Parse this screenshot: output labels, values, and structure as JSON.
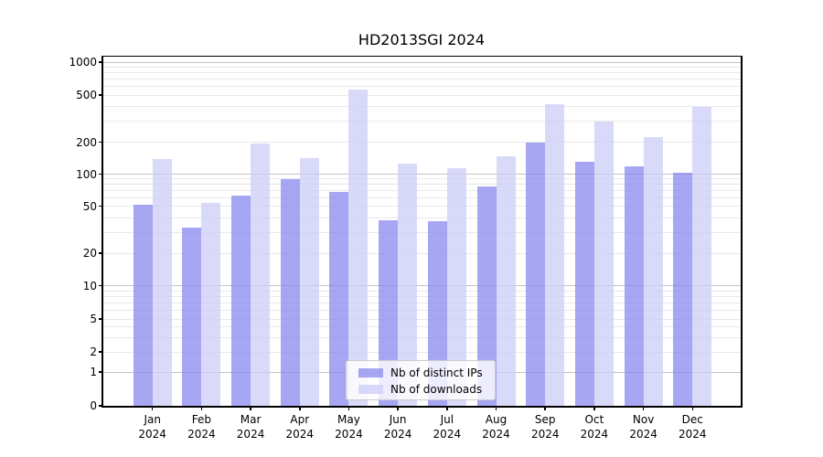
{
  "chart_data": {
    "type": "bar",
    "title": "HD2013SGI 2024",
    "categories": [
      "Jan",
      "Feb",
      "Mar",
      "Apr",
      "May",
      "Jun",
      "Jul",
      "Aug",
      "Sep",
      "Oct",
      "Nov",
      "Dec"
    ],
    "year_label": "2024",
    "series": [
      {
        "name": "Nb of distinct IPs",
        "color": "#8888ee",
        "alpha": 0.75,
        "values": [
          52,
          33,
          63,
          90,
          68,
          38,
          37,
          76,
          198,
          131,
          118,
          103
        ]
      },
      {
        "name": "Nb of downloads",
        "color": "#ccccf8",
        "alpha": 0.75,
        "values": [
          138,
          54,
          195,
          141,
          565,
          125,
          114,
          147,
          420,
          300,
          220,
          400
        ]
      }
    ],
    "y_scale": "symlog",
    "ylim": [
      0,
      1000
    ],
    "y_ticks": [
      0,
      1,
      2,
      5,
      10,
      20,
      50,
      100,
      200,
      500,
      1000
    ],
    "y_minor_ticks": [
      3,
      4,
      6,
      7,
      8,
      9,
      30,
      40,
      60,
      70,
      80,
      90,
      300,
      400,
      600,
      700,
      800,
      900
    ],
    "grid": true,
    "legend_position": "lower center inside",
    "grid_major_color": "#c3c3c3",
    "grid_minor_color": "#e9e9e9",
    "axis_color": "#000000"
  },
  "legend": {
    "items": [
      "Nb of distinct IPs",
      "Nb of downloads"
    ]
  }
}
